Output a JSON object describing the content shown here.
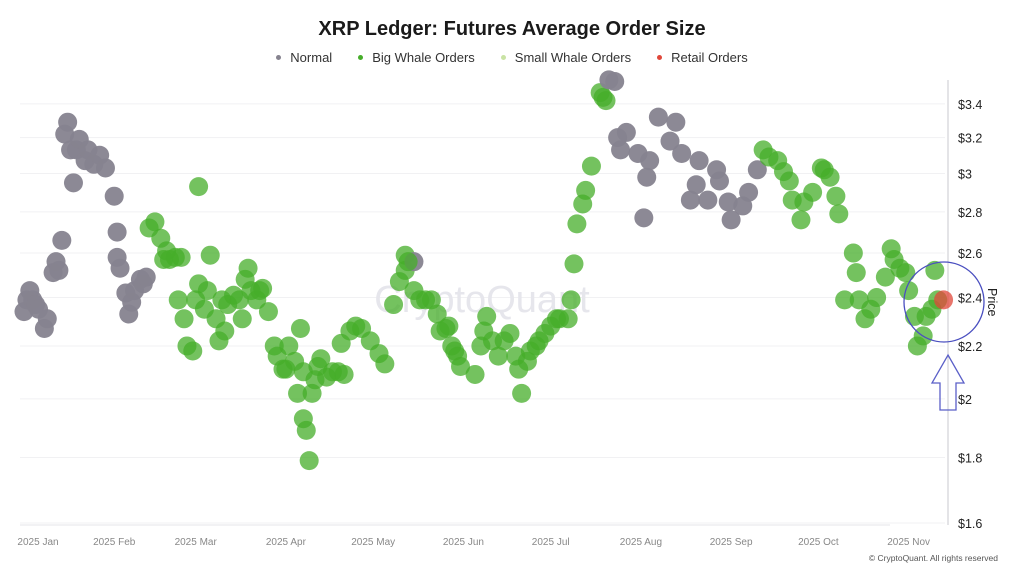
{
  "chart_data": {
    "type": "scatter",
    "title": "XRP Ledger: Futures Average Order Size",
    "ylabel": "Price",
    "yscale": "log",
    "ylim": [
      1.6,
      3.55
    ],
    "yticks": [
      1.6,
      1.8,
      2.0,
      2.2,
      2.4,
      2.6,
      2.8,
      3.0,
      3.2,
      3.4
    ],
    "ytick_labels": [
      "$1.6",
      "$1.8",
      "$2",
      "$2.2",
      "$2.4",
      "$2.6",
      "$2.8",
      "$3",
      "$3.2",
      "$3.4"
    ],
    "xlim": [
      "2025-01-01",
      "2025-11-13"
    ],
    "xticks": [
      "2025-01-01",
      "2025-02-01",
      "2025-03-01",
      "2025-04-01",
      "2025-05-01",
      "2025-06-01",
      "2025-07-01",
      "2025-08-01",
      "2025-09-01",
      "2025-10-01",
      "2025-11-01"
    ],
    "xtick_labels": [
      "2025 Jan",
      "2025 Feb",
      "2025 Mar",
      "2025 Apr",
      "2025 May",
      "2025 Jun",
      "2025 Jul",
      "2025 Aug",
      "2025 Sep",
      "2025 Oct",
      "2025 Nov"
    ],
    "grid": "horizontal",
    "legend_position": "top-center",
    "legend": [
      {
        "name": "Normal",
        "color": "#86838f"
      },
      {
        "name": "Big Whale Orders",
        "color": "#46ad2a"
      },
      {
        "name": "Small Whale Orders",
        "color": "#c9e3a4"
      },
      {
        "name": "Retail Orders",
        "color": "#e0473a"
      }
    ],
    "watermark": "CryptoQuant",
    "annotation": "circle-and-arrow-highlighting-latest-point",
    "points": [
      [
        "2025-01-01",
        2.34,
        "Normal"
      ],
      [
        "2025-01-02",
        2.39,
        "Normal"
      ],
      [
        "2025-01-03",
        2.43,
        "Normal"
      ],
      [
        "2025-01-04",
        2.39,
        "Normal"
      ],
      [
        "2025-01-05",
        2.37,
        "Normal"
      ],
      [
        "2025-01-06",
        2.35,
        "Normal"
      ],
      [
        "2025-01-08",
        2.27,
        "Normal"
      ],
      [
        "2025-01-09",
        2.31,
        "Normal"
      ],
      [
        "2025-01-11",
        2.51,
        "Normal"
      ],
      [
        "2025-01-12",
        2.56,
        "Normal"
      ],
      [
        "2025-01-13",
        2.52,
        "Normal"
      ],
      [
        "2025-01-14",
        2.66,
        "Normal"
      ],
      [
        "2025-01-15",
        3.22,
        "Normal"
      ],
      [
        "2025-01-16",
        3.29,
        "Normal"
      ],
      [
        "2025-01-17",
        3.13,
        "Normal"
      ],
      [
        "2025-01-18",
        2.95,
        "Normal"
      ],
      [
        "2025-01-19",
        3.13,
        "Normal"
      ],
      [
        "2025-01-20",
        3.19,
        "Normal"
      ],
      [
        "2025-01-22",
        3.07,
        "Normal"
      ],
      [
        "2025-01-23",
        3.13,
        "Normal"
      ],
      [
        "2025-01-25",
        3.05,
        "Normal"
      ],
      [
        "2025-01-27",
        3.1,
        "Normal"
      ],
      [
        "2025-01-29",
        3.03,
        "Normal"
      ],
      [
        "2025-02-01",
        2.88,
        "Normal"
      ],
      [
        "2025-02-02",
        2.7,
        "Normal"
      ],
      [
        "2025-02-02",
        2.58,
        "Normal"
      ],
      [
        "2025-02-03",
        2.53,
        "Normal"
      ],
      [
        "2025-02-05",
        2.42,
        "Normal"
      ],
      [
        "2025-02-06",
        2.33,
        "Normal"
      ],
      [
        "2025-02-07",
        2.38,
        "Normal"
      ],
      [
        "2025-02-08",
        2.43,
        "Normal"
      ],
      [
        "2025-02-10",
        2.48,
        "Normal"
      ],
      [
        "2025-02-11",
        2.46,
        "Normal"
      ],
      [
        "2025-02-12",
        2.49,
        "Normal"
      ],
      [
        "2025-02-13",
        2.72,
        "Big Whale Orders"
      ],
      [
        "2025-02-15",
        2.75,
        "Big Whale Orders"
      ],
      [
        "2025-02-17",
        2.67,
        "Big Whale Orders"
      ],
      [
        "2025-02-18",
        2.57,
        "Big Whale Orders"
      ],
      [
        "2025-02-19",
        2.61,
        "Big Whale Orders"
      ],
      [
        "2025-02-20",
        2.57,
        "Big Whale Orders"
      ],
      [
        "2025-02-22",
        2.58,
        "Big Whale Orders"
      ],
      [
        "2025-02-24",
        2.58,
        "Big Whale Orders"
      ],
      [
        "2025-02-23",
        2.39,
        "Big Whale Orders"
      ],
      [
        "2025-02-25",
        2.31,
        "Big Whale Orders"
      ],
      [
        "2025-02-26",
        2.2,
        "Big Whale Orders"
      ],
      [
        "2025-02-28",
        2.18,
        "Big Whale Orders"
      ],
      [
        "2025-03-01",
        2.39,
        "Big Whale Orders"
      ],
      [
        "2025-03-02",
        2.93,
        "Big Whale Orders"
      ],
      [
        "2025-03-02",
        2.46,
        "Big Whale Orders"
      ],
      [
        "2025-03-04",
        2.35,
        "Big Whale Orders"
      ],
      [
        "2025-03-05",
        2.43,
        "Big Whale Orders"
      ],
      [
        "2025-03-06",
        2.59,
        "Big Whale Orders"
      ],
      [
        "2025-03-08",
        2.31,
        "Big Whale Orders"
      ],
      [
        "2025-03-09",
        2.22,
        "Big Whale Orders"
      ],
      [
        "2025-03-10",
        2.39,
        "Big Whale Orders"
      ],
      [
        "2025-03-11",
        2.26,
        "Big Whale Orders"
      ],
      [
        "2025-03-12",
        2.37,
        "Big Whale Orders"
      ],
      [
        "2025-03-14",
        2.41,
        "Big Whale Orders"
      ],
      [
        "2025-03-16",
        2.39,
        "Big Whale Orders"
      ],
      [
        "2025-03-17",
        2.31,
        "Big Whale Orders"
      ],
      [
        "2025-03-18",
        2.48,
        "Big Whale Orders"
      ],
      [
        "2025-03-19",
        2.53,
        "Big Whale Orders"
      ],
      [
        "2025-03-20",
        2.43,
        "Big Whale Orders"
      ],
      [
        "2025-03-22",
        2.39,
        "Big Whale Orders"
      ],
      [
        "2025-03-23",
        2.43,
        "Big Whale Orders"
      ],
      [
        "2025-03-24",
        2.44,
        "Big Whale Orders"
      ],
      [
        "2025-03-26",
        2.34,
        "Big Whale Orders"
      ],
      [
        "2025-03-28",
        2.2,
        "Big Whale Orders"
      ],
      [
        "2025-03-29",
        2.16,
        "Big Whale Orders"
      ],
      [
        "2025-03-31",
        2.11,
        "Big Whale Orders"
      ],
      [
        "2025-04-01",
        2.11,
        "Big Whale Orders"
      ],
      [
        "2025-04-02",
        2.2,
        "Big Whale Orders"
      ],
      [
        "2025-04-04",
        2.14,
        "Big Whale Orders"
      ],
      [
        "2025-04-05",
        2.02,
        "Big Whale Orders"
      ],
      [
        "2025-04-06",
        2.27,
        "Big Whale Orders"
      ],
      [
        "2025-04-07",
        2.1,
        "Big Whale Orders"
      ],
      [
        "2025-04-07",
        1.93,
        "Big Whale Orders"
      ],
      [
        "2025-04-08",
        1.89,
        "Big Whale Orders"
      ],
      [
        "2025-04-09",
        1.79,
        "Big Whale Orders"
      ],
      [
        "2025-04-10",
        2.02,
        "Big Whale Orders"
      ],
      [
        "2025-04-11",
        2.07,
        "Big Whale Orders"
      ],
      [
        "2025-04-12",
        2.12,
        "Big Whale Orders"
      ],
      [
        "2025-04-13",
        2.15,
        "Big Whale Orders"
      ],
      [
        "2025-04-15",
        2.08,
        "Big Whale Orders"
      ],
      [
        "2025-04-17",
        2.1,
        "Big Whale Orders"
      ],
      [
        "2025-04-19",
        2.1,
        "Big Whale Orders"
      ],
      [
        "2025-04-20",
        2.21,
        "Big Whale Orders"
      ],
      [
        "2025-04-21",
        2.09,
        "Big Whale Orders"
      ],
      [
        "2025-04-23",
        2.26,
        "Big Whale Orders"
      ],
      [
        "2025-04-25",
        2.28,
        "Big Whale Orders"
      ],
      [
        "2025-04-27",
        2.27,
        "Big Whale Orders"
      ],
      [
        "2025-04-30",
        2.22,
        "Big Whale Orders"
      ],
      [
        "2025-05-03",
        2.17,
        "Big Whale Orders"
      ],
      [
        "2025-05-05",
        2.13,
        "Big Whale Orders"
      ],
      [
        "2025-05-08",
        2.37,
        "Big Whale Orders"
      ],
      [
        "2025-05-10",
        2.47,
        "Big Whale Orders"
      ],
      [
        "2025-05-12",
        2.59,
        "Big Whale Orders"
      ],
      [
        "2025-05-12",
        2.52,
        "Big Whale Orders"
      ],
      [
        "2025-05-15",
        2.56,
        "Normal"
      ],
      [
        "2025-05-13",
        2.56,
        "Big Whale Orders"
      ],
      [
        "2025-05-15",
        2.43,
        "Big Whale Orders"
      ],
      [
        "2025-05-17",
        2.39,
        "Big Whale Orders"
      ],
      [
        "2025-05-19",
        2.39,
        "Big Whale Orders"
      ],
      [
        "2025-05-21",
        2.39,
        "Big Whale Orders"
      ],
      [
        "2025-05-23",
        2.33,
        "Big Whale Orders"
      ],
      [
        "2025-05-24",
        2.26,
        "Big Whale Orders"
      ],
      [
        "2025-05-26",
        2.27,
        "Big Whale Orders"
      ],
      [
        "2025-05-27",
        2.28,
        "Big Whale Orders"
      ],
      [
        "2025-05-28",
        2.2,
        "Big Whale Orders"
      ],
      [
        "2025-05-29",
        2.18,
        "Big Whale Orders"
      ],
      [
        "2025-05-30",
        2.16,
        "Big Whale Orders"
      ],
      [
        "2025-05-31",
        2.12,
        "Big Whale Orders"
      ],
      [
        "2025-06-05",
        2.09,
        "Big Whale Orders"
      ],
      [
        "2025-06-07",
        2.2,
        "Big Whale Orders"
      ],
      [
        "2025-06-08",
        2.26,
        "Big Whale Orders"
      ],
      [
        "2025-06-09",
        2.32,
        "Big Whale Orders"
      ],
      [
        "2025-06-11",
        2.22,
        "Big Whale Orders"
      ],
      [
        "2025-06-13",
        2.16,
        "Big Whale Orders"
      ],
      [
        "2025-06-15",
        2.22,
        "Big Whale Orders"
      ],
      [
        "2025-06-17",
        2.25,
        "Big Whale Orders"
      ],
      [
        "2025-06-19",
        2.16,
        "Big Whale Orders"
      ],
      [
        "2025-06-20",
        2.11,
        "Big Whale Orders"
      ],
      [
        "2025-06-21",
        2.02,
        "Big Whale Orders"
      ],
      [
        "2025-06-23",
        2.14,
        "Big Whale Orders"
      ],
      [
        "2025-06-24",
        2.18,
        "Big Whale Orders"
      ],
      [
        "2025-06-26",
        2.2,
        "Big Whale Orders"
      ],
      [
        "2025-06-27",
        2.22,
        "Big Whale Orders"
      ],
      [
        "2025-06-29",
        2.25,
        "Big Whale Orders"
      ],
      [
        "2025-07-01",
        2.28,
        "Big Whale Orders"
      ],
      [
        "2025-07-03",
        2.31,
        "Big Whale Orders"
      ],
      [
        "2025-07-04",
        2.31,
        "Big Whale Orders"
      ],
      [
        "2025-07-07",
        2.31,
        "Big Whale Orders"
      ],
      [
        "2025-07-08",
        2.39,
        "Big Whale Orders"
      ],
      [
        "2025-07-09",
        2.55,
        "Big Whale Orders"
      ],
      [
        "2025-07-10",
        2.74,
        "Big Whale Orders"
      ],
      [
        "2025-07-12",
        2.84,
        "Big Whale Orders"
      ],
      [
        "2025-07-13",
        2.91,
        "Big Whale Orders"
      ],
      [
        "2025-07-15",
        3.04,
        "Big Whale Orders"
      ],
      [
        "2025-07-18",
        3.47,
        "Big Whale Orders"
      ],
      [
        "2025-07-19",
        3.44,
        "Big Whale Orders"
      ],
      [
        "2025-07-20",
        3.42,
        "Big Whale Orders"
      ],
      [
        "2025-07-21",
        3.55,
        "Normal"
      ],
      [
        "2025-07-23",
        3.54,
        "Normal"
      ],
      [
        "2025-07-24",
        3.2,
        "Normal"
      ],
      [
        "2025-07-25",
        3.13,
        "Normal"
      ],
      [
        "2025-07-27",
        3.23,
        "Normal"
      ],
      [
        "2025-07-31",
        3.11,
        "Normal"
      ],
      [
        "2025-08-02",
        2.77,
        "Normal"
      ],
      [
        "2025-08-03",
        2.98,
        "Normal"
      ],
      [
        "2025-08-04",
        3.07,
        "Normal"
      ],
      [
        "2025-08-07",
        3.32,
        "Normal"
      ],
      [
        "2025-08-11",
        3.18,
        "Normal"
      ],
      [
        "2025-08-13",
        3.29,
        "Normal"
      ],
      [
        "2025-08-15",
        3.11,
        "Normal"
      ],
      [
        "2025-08-18",
        2.86,
        "Normal"
      ],
      [
        "2025-08-20",
        2.94,
        "Normal"
      ],
      [
        "2025-08-21",
        3.07,
        "Normal"
      ],
      [
        "2025-08-24",
        2.86,
        "Normal"
      ],
      [
        "2025-08-27",
        3.02,
        "Normal"
      ],
      [
        "2025-08-28",
        2.96,
        "Normal"
      ],
      [
        "2025-08-31",
        2.85,
        "Normal"
      ],
      [
        "2025-09-01",
        2.76,
        "Normal"
      ],
      [
        "2025-09-05",
        2.83,
        "Normal"
      ],
      [
        "2025-09-07",
        2.9,
        "Normal"
      ],
      [
        "2025-09-10",
        3.02,
        "Normal"
      ],
      [
        "2025-09-12",
        3.13,
        "Big Whale Orders"
      ],
      [
        "2025-09-14",
        3.09,
        "Big Whale Orders"
      ],
      [
        "2025-09-17",
        3.07,
        "Big Whale Orders"
      ],
      [
        "2025-09-19",
        3.01,
        "Big Whale Orders"
      ],
      [
        "2025-09-21",
        2.96,
        "Big Whale Orders"
      ],
      [
        "2025-09-22",
        2.86,
        "Big Whale Orders"
      ],
      [
        "2025-09-25",
        2.76,
        "Big Whale Orders"
      ],
      [
        "2025-09-26",
        2.85,
        "Big Whale Orders"
      ],
      [
        "2025-09-29",
        2.9,
        "Big Whale Orders"
      ],
      [
        "2025-10-02",
        3.03,
        "Big Whale Orders"
      ],
      [
        "2025-10-03",
        3.02,
        "Big Whale Orders"
      ],
      [
        "2025-10-05",
        2.98,
        "Big Whale Orders"
      ],
      [
        "2025-10-07",
        2.88,
        "Big Whale Orders"
      ],
      [
        "2025-10-08",
        2.79,
        "Big Whale Orders"
      ],
      [
        "2025-10-10",
        2.39,
        "Big Whale Orders"
      ],
      [
        "2025-10-13",
        2.6,
        "Big Whale Orders"
      ],
      [
        "2025-10-14",
        2.51,
        "Big Whale Orders"
      ],
      [
        "2025-10-15",
        2.39,
        "Big Whale Orders"
      ],
      [
        "2025-10-17",
        2.31,
        "Big Whale Orders"
      ],
      [
        "2025-10-19",
        2.35,
        "Big Whale Orders"
      ],
      [
        "2025-10-21",
        2.4,
        "Big Whale Orders"
      ],
      [
        "2025-10-24",
        2.49,
        "Big Whale Orders"
      ],
      [
        "2025-10-26",
        2.62,
        "Big Whale Orders"
      ],
      [
        "2025-10-27",
        2.57,
        "Big Whale Orders"
      ],
      [
        "2025-10-29",
        2.53,
        "Big Whale Orders"
      ],
      [
        "2025-10-31",
        2.51,
        "Big Whale Orders"
      ],
      [
        "2025-11-01",
        2.43,
        "Big Whale Orders"
      ],
      [
        "2025-11-03",
        2.32,
        "Big Whale Orders"
      ],
      [
        "2025-11-04",
        2.2,
        "Big Whale Orders"
      ],
      [
        "2025-11-06",
        2.24,
        "Big Whale Orders"
      ],
      [
        "2025-11-07",
        2.32,
        "Big Whale Orders"
      ],
      [
        "2025-11-09",
        2.35,
        "Big Whale Orders"
      ],
      [
        "2025-11-10",
        2.52,
        "Big Whale Orders"
      ],
      [
        "2025-11-11",
        2.39,
        "Big Whale Orders"
      ],
      [
        "2025-11-13",
        2.39,
        "Retail Orders"
      ]
    ]
  },
  "footer": "© CryptoQuant. All rights reserved"
}
